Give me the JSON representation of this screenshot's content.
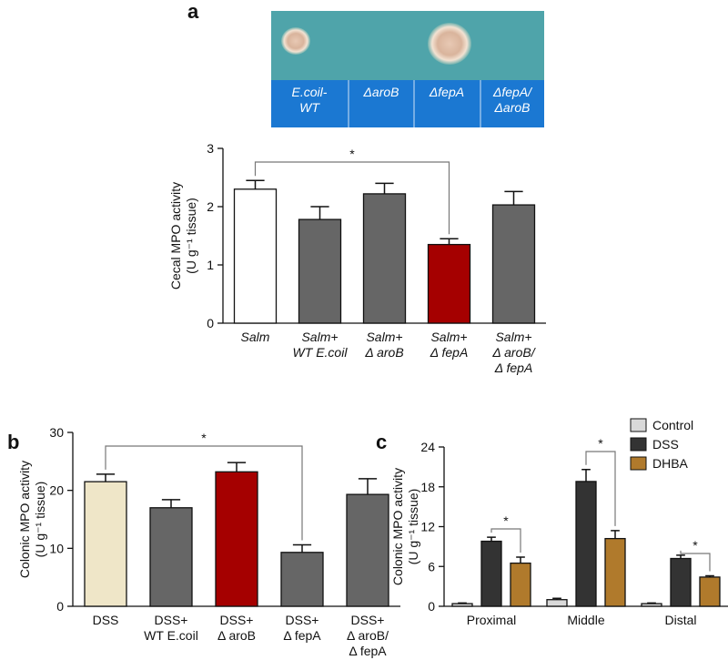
{
  "panel_labels": [
    "a",
    "b",
    "c"
  ],
  "plate": {
    "labels": [
      "E.coil-\nWT",
      "ΔaroB",
      "ΔfepA",
      "ΔfepA/\nΔaroB"
    ]
  },
  "chart_data": [
    {
      "type": "bar",
      "ylabel": "Cecal MPO activity\n(U g⁻¹ tissue)",
      "categories": [
        "Salm",
        "Salm+\nWT E.coil",
        "Salm+\nΔ aroB",
        "Salm+\nΔ fepA",
        "Salm+\nΔ aroB/\nΔ fepA"
      ],
      "italic_categories": true,
      "values": [
        2.3,
        1.78,
        2.22,
        1.35,
        2.03
      ],
      "errors": [
        0.15,
        0.22,
        0.18,
        0.1,
        0.23
      ],
      "colors": [
        "#ffffff",
        "#666666",
        "#666666",
        "#a50000",
        "#666666"
      ],
      "ylim": [
        0,
        3
      ],
      "yticks": [
        0,
        1,
        2,
        3
      ],
      "annotations": [
        "*"
      ]
    },
    {
      "type": "bar",
      "ylabel": "Colonic MPO activity\n(U g⁻¹ tissue)",
      "categories": [
        "DSS",
        "DSS+\nWT E.coil",
        "DSS+\nΔ aroB",
        "DSS+\nΔ fepA",
        "DSS+\nΔ aroB/\nΔ fepA"
      ],
      "italic_categories": false,
      "values": [
        21.5,
        17,
        23.2,
        9.3,
        19.3
      ],
      "errors": [
        1.3,
        1.4,
        1.6,
        1.3,
        2.7
      ],
      "colors": [
        "#efe6c8",
        "#666666",
        "#a50000",
        "#666666",
        "#666666"
      ],
      "ylim": [
        0,
        30
      ],
      "yticks": [
        0,
        10,
        20,
        30
      ],
      "annotations": [
        "*"
      ]
    },
    {
      "type": "grouped_bar",
      "ylabel": "Colonic MPO activity\n(U g⁻¹ tissue)",
      "categories": [
        "Proximal",
        "Middle",
        "Distal"
      ],
      "series": [
        {
          "name": "Control",
          "color": "#d9d9d9",
          "values": [
            0.4,
            1.0,
            0.4
          ],
          "errors": [
            0.1,
            0.2,
            0.1
          ]
        },
        {
          "name": "DSS",
          "color": "#333333",
          "values": [
            9.8,
            18.8,
            7.2
          ],
          "errors": [
            0.6,
            1.8,
            0.5
          ]
        },
        {
          "name": "DHBA",
          "color": "#b07a2c",
          "values": [
            6.5,
            10.2,
            4.4
          ],
          "errors": [
            0.9,
            1.2,
            0.2
          ]
        }
      ],
      "ylim": [
        0,
        24
      ],
      "yticks": [
        0,
        6,
        12,
        18,
        24
      ],
      "annotations": [
        "*",
        "*",
        "*"
      ]
    }
  ]
}
